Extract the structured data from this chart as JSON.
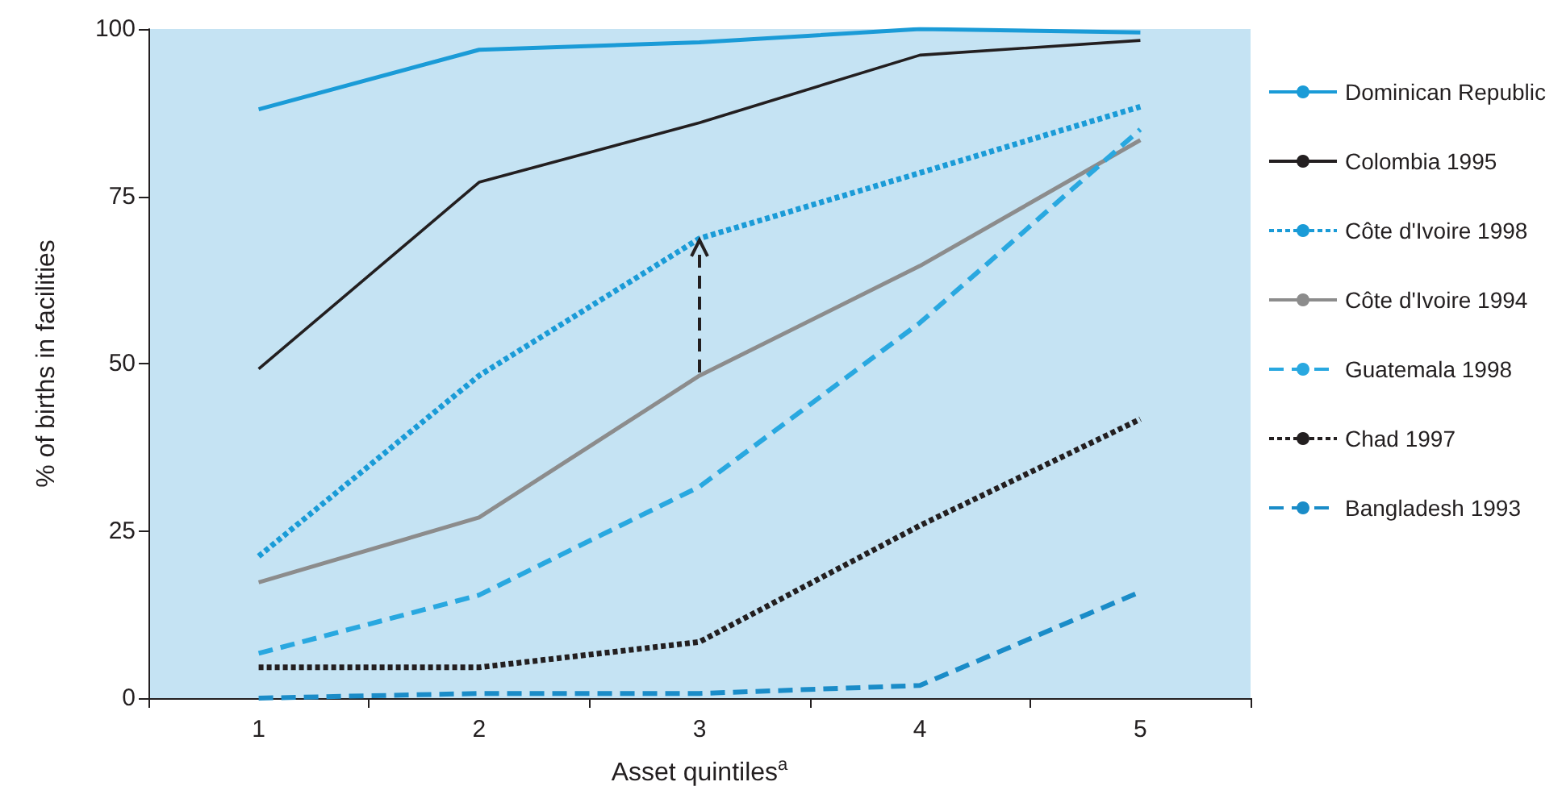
{
  "chart_data": {
    "type": "line",
    "xlabel": "Asset quintiles$^{a}$",
    "ylabel": "% of births in facilities",
    "categories": [
      "1",
      "2",
      "3",
      "4",
      "5"
    ],
    "series": [
      {
        "name": "Dominican Republic",
        "color": "#1a9bd7",
        "line_style": "solid",
        "values": [
          88,
          96.9,
          98,
          100,
          99.5
        ]
      },
      {
        "name": "Colombia 1995",
        "color": "#231f20",
        "line_style": "solid",
        "values": [
          49.2,
          77.1,
          86,
          96.1,
          98.3
        ]
      },
      {
        "name": "Côte d'Ivoire 1998",
        "color": "#1a9bd7",
        "line_style": "dotted",
        "values": [
          21.2,
          48.2,
          68.7,
          78.5,
          88.4
        ]
      },
      {
        "name": "Côte d'Ivoire 1994",
        "color": "#8c8c8c",
        "line_style": "solid",
        "values": [
          17.3,
          27,
          48.2,
          64.6,
          83.4
        ]
      },
      {
        "name": "Guatemala 1998",
        "color": "#29a8e0",
        "line_style": "dashed",
        "values": [
          6.7,
          15.4,
          31.6,
          56.1,
          85
        ]
      },
      {
        "name": "Chad 1997",
        "color": "#231f20",
        "line_style": "dotted",
        "values": [
          4.6,
          4.6,
          8.4,
          25.8,
          41.7
        ]
      },
      {
        "name": "Bangladesh 1993",
        "color": "#1a8cc8",
        "line_style": "dashed",
        "values": [
          0,
          0.7,
          0.7,
          1.9,
          15.9
        ]
      }
    ],
    "ylim": [
      0,
      100
    ],
    "yticks": [
      0,
      25,
      50,
      75,
      100
    ],
    "grid": false,
    "legend": "right",
    "marker": "none"
  }
}
